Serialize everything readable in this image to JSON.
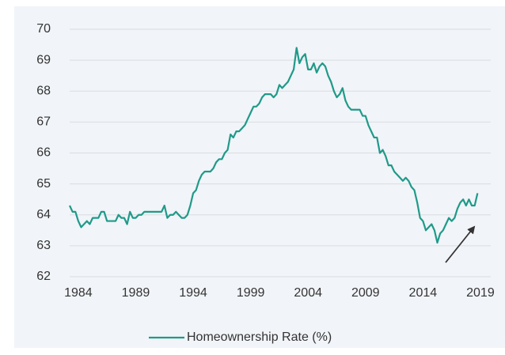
{
  "chart_data": {
    "type": "line",
    "x": [
      1983.25,
      1983.5,
      1983.75,
      1984,
      1984.25,
      1984.5,
      1984.75,
      1985,
      1985.25,
      1985.5,
      1985.75,
      1986,
      1986.25,
      1986.5,
      1986.75,
      1987,
      1987.25,
      1987.5,
      1987.75,
      1988,
      1988.25,
      1988.5,
      1988.75,
      1989,
      1989.25,
      1989.5,
      1989.75,
      1990,
      1990.25,
      1990.5,
      1990.75,
      1991,
      1991.25,
      1991.5,
      1991.75,
      1992,
      1992.25,
      1992.5,
      1992.75,
      1993,
      1993.25,
      1993.5,
      1993.75,
      1994,
      1994.25,
      1994.5,
      1994.75,
      1995,
      1995.25,
      1995.5,
      1995.75,
      1996,
      1996.25,
      1996.5,
      1996.75,
      1997,
      1997.25,
      1997.5,
      1997.75,
      1998,
      1998.25,
      1998.5,
      1998.75,
      1999,
      1999.25,
      1999.5,
      1999.75,
      2000,
      2000.25,
      2000.5,
      2000.75,
      2001,
      2001.25,
      2001.5,
      2001.75,
      2002,
      2002.25,
      2002.5,
      2002.75,
      2003,
      2003.25,
      2003.5,
      2003.75,
      2004,
      2004.25,
      2004.5,
      2004.75,
      2005,
      2005.25,
      2005.5,
      2005.75,
      2006,
      2006.25,
      2006.5,
      2006.75,
      2007,
      2007.25,
      2007.5,
      2007.75,
      2008,
      2008.25,
      2008.5,
      2008.75,
      2009,
      2009.25,
      2009.5,
      2009.75,
      2010,
      2010.25,
      2010.5,
      2010.75,
      2011,
      2011.25,
      2011.5,
      2011.75,
      2012,
      2012.25,
      2012.5,
      2012.75,
      2013,
      2013.25,
      2013.5,
      2013.75,
      2014,
      2014.25,
      2014.5,
      2014.75,
      2015,
      2015.25,
      2015.5,
      2015.75,
      2016,
      2016.25,
      2016.5,
      2016.75,
      2017,
      2017.25,
      2017.5,
      2017.75,
      2018,
      2018.25,
      2018.5,
      2018.75
    ],
    "series": [
      {
        "name": "Homeownership Rate (%)",
        "color": "#1f9a89",
        "values": [
          64.3,
          64.1,
          64.1,
          63.8,
          63.6,
          63.7,
          63.8,
          63.7,
          63.9,
          63.9,
          63.9,
          64.1,
          64.1,
          63.8,
          63.8,
          63.8,
          63.8,
          64.0,
          63.9,
          63.9,
          63.7,
          64.1,
          63.9,
          63.9,
          64.0,
          64.0,
          64.1,
          64.1,
          64.1,
          64.1,
          64.1,
          64.1,
          64.1,
          64.3,
          63.9,
          64.0,
          64.0,
          64.1,
          64.0,
          63.9,
          63.9,
          64.0,
          64.3,
          64.7,
          64.8,
          65.1,
          65.3,
          65.4,
          65.4,
          65.4,
          65.5,
          65.7,
          65.8,
          65.8,
          66.0,
          66.1,
          66.6,
          66.5,
          66.7,
          66.7,
          66.8,
          66.9,
          67.1,
          67.3,
          67.5,
          67.5,
          67.6,
          67.8,
          67.9,
          67.9,
          67.9,
          67.8,
          67.9,
          68.2,
          68.1,
          68.2,
          68.3,
          68.5,
          68.7,
          69.4,
          68.9,
          69.1,
          69.2,
          68.7,
          68.7,
          68.9,
          68.6,
          68.8,
          68.9,
          68.8,
          68.5,
          68.3,
          68.0,
          67.8,
          67.9,
          68.1,
          67.7,
          67.5,
          67.4,
          67.4,
          67.4,
          67.4,
          67.2,
          67.2,
          66.9,
          66.7,
          66.5,
          66.5,
          66.0,
          66.1,
          65.9,
          65.6,
          65.6,
          65.4,
          65.3,
          65.2,
          65.1,
          65.2,
          65.1,
          64.9,
          64.8,
          64.4,
          63.9,
          63.8,
          63.5,
          63.6,
          63.7,
          63.5,
          63.1,
          63.4,
          63.5,
          63.7,
          63.9,
          63.8,
          63.9,
          64.2,
          64.4,
          64.5,
          64.3,
          64.5,
          64.3,
          64.3,
          64.7
        ]
      }
    ],
    "xlim": [
      1983.25,
      2019.9
    ],
    "xticks": [
      1984,
      1989,
      1994,
      1999,
      2004,
      2009,
      2014,
      2019
    ],
    "ylim": [
      62,
      70
    ],
    "yticks": [
      62,
      63,
      64,
      65,
      66,
      67,
      68,
      69,
      70
    ],
    "grid": true,
    "legend": "bottom"
  }
}
